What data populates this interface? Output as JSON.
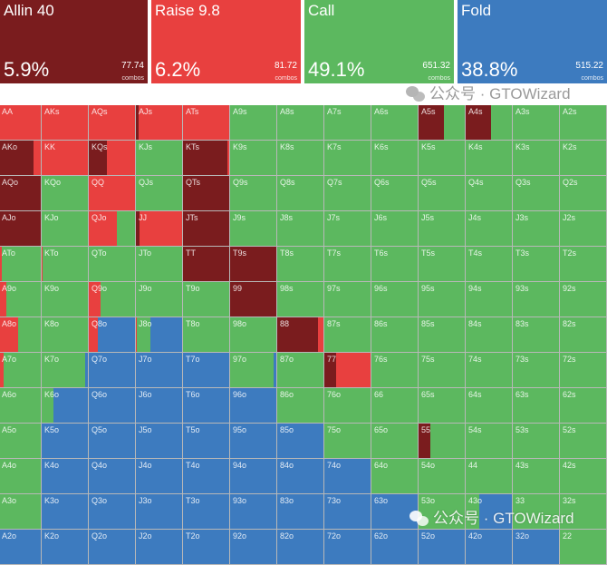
{
  "colors": {
    "allin": "#7a1c1e",
    "raise": "#e8403f",
    "call": "#5cb85f",
    "fold": "#3d7bbf"
  },
  "summary": [
    {
      "name": "Allin 40",
      "pct": "5.9%",
      "combos": "77.74",
      "combos_label": "combos",
      "color": "#7a1c1e"
    },
    {
      "name": "Raise 9.8",
      "pct": "6.2%",
      "combos": "81.72",
      "combos_label": "combos",
      "color": "#e8403f"
    },
    {
      "name": "Call",
      "pct": "49.1%",
      "combos": "651.32",
      "combos_label": "combos",
      "color": "#5cb85f"
    },
    {
      "name": "Fold",
      "pct": "38.8%",
      "combos": "515.22",
      "combos_label": "combos",
      "color": "#3d7bbf"
    }
  ],
  "watermark": "公众号 · GTOWizard",
  "grid": [
    [
      [
        "AA",
        0,
        1,
        0,
        0
      ],
      [
        "AKs",
        0,
        1,
        0,
        0
      ],
      [
        "AQs",
        0,
        1,
        0,
        0
      ],
      [
        "AJs",
        0.05,
        0.95,
        0,
        0
      ],
      [
        "ATs",
        0,
        1,
        0,
        0
      ],
      [
        "A9s",
        0,
        0,
        1,
        0
      ],
      [
        "A8s",
        0,
        0,
        1,
        0
      ],
      [
        "A7s",
        0,
        0,
        1,
        0
      ],
      [
        "A6s",
        0,
        0,
        1,
        0
      ],
      [
        "A5s",
        0.55,
        0,
        0.45,
        0
      ],
      [
        "A4s",
        0.55,
        0,
        0.45,
        0
      ],
      [
        "A3s",
        0,
        0,
        1,
        0
      ],
      [
        "A2s",
        0,
        0,
        1,
        0
      ]
    ],
    [
      [
        "AKo",
        0.85,
        0.15,
        0,
        0
      ],
      [
        "KK",
        0,
        1,
        0,
        0
      ],
      [
        "KQs",
        0.4,
        0.6,
        0,
        0
      ],
      [
        "KJs",
        0,
        0,
        1,
        0
      ],
      [
        "KTs",
        0.97,
        0.03,
        0,
        0
      ],
      [
        "K9s",
        0,
        0,
        1,
        0
      ],
      [
        "K8s",
        0,
        0,
        1,
        0
      ],
      [
        "K7s",
        0,
        0,
        1,
        0
      ],
      [
        "K6s",
        0,
        0,
        1,
        0
      ],
      [
        "K5s",
        0,
        0,
        1,
        0
      ],
      [
        "K4s",
        0,
        0,
        1,
        0
      ],
      [
        "K3s",
        0,
        0,
        1,
        0
      ],
      [
        "K2s",
        0,
        0,
        1,
        0
      ]
    ],
    [
      [
        "AQo",
        1,
        0,
        0,
        0
      ],
      [
        "KQo",
        0,
        0,
        1,
        0
      ],
      [
        "QQ",
        0,
        1,
        0,
        0
      ],
      [
        "QJs",
        0,
        0,
        1,
        0
      ],
      [
        "QTs",
        1,
        0,
        0,
        0
      ],
      [
        "Q9s",
        0,
        0,
        1,
        0
      ],
      [
        "Q8s",
        0,
        0,
        1,
        0
      ],
      [
        "Q7s",
        0,
        0,
        1,
        0
      ],
      [
        "Q6s",
        0,
        0,
        1,
        0
      ],
      [
        "Q5s",
        0,
        0,
        1,
        0
      ],
      [
        "Q4s",
        0,
        0,
        1,
        0
      ],
      [
        "Q3s",
        0,
        0,
        1,
        0
      ],
      [
        "Q2s",
        0,
        0,
        1,
        0
      ]
    ],
    [
      [
        "AJo",
        1,
        0,
        0,
        0
      ],
      [
        "KJo",
        0,
        0,
        1,
        0
      ],
      [
        "QJo",
        0,
        0.6,
        0.4,
        0
      ],
      [
        "JJ",
        0.08,
        0.92,
        0,
        0
      ],
      [
        "JTs",
        1,
        0,
        0,
        0
      ],
      [
        "J9s",
        0,
        0,
        1,
        0
      ],
      [
        "J8s",
        0,
        0,
        1,
        0
      ],
      [
        "J7s",
        0,
        0,
        1,
        0
      ],
      [
        "J6s",
        0,
        0,
        1,
        0
      ],
      [
        "J5s",
        0,
        0,
        1,
        0
      ],
      [
        "J4s",
        0,
        0,
        1,
        0
      ],
      [
        "J3s",
        0,
        0,
        1,
        0
      ],
      [
        "J2s",
        0,
        0,
        1,
        0
      ]
    ],
    [
      [
        "ATo",
        0,
        0.15,
        0.85,
        0
      ],
      [
        "KTo",
        0,
        0.02,
        0.98,
        0
      ],
      [
        "QTo",
        0,
        0,
        1,
        0
      ],
      [
        "JTo",
        0,
        0,
        1,
        0
      ],
      [
        "TT",
        1,
        0,
        0,
        0
      ],
      [
        "T9s",
        1,
        0,
        0,
        0
      ],
      [
        "T8s",
        0,
        0,
        1,
        0
      ],
      [
        "T7s",
        0,
        0,
        1,
        0
      ],
      [
        "T6s",
        0,
        0,
        1,
        0
      ],
      [
        "T5s",
        0,
        0,
        1,
        0
      ],
      [
        "T4s",
        0,
        0,
        1,
        0
      ],
      [
        "T3s",
        0,
        0,
        1,
        0
      ],
      [
        "T2s",
        0,
        0,
        1,
        0
      ]
    ],
    [
      [
        "A9o",
        0,
        0.25,
        0.75,
        0
      ],
      [
        "K9o",
        0,
        0,
        1,
        0
      ],
      [
        "Q9o",
        0,
        0.25,
        0.75,
        0
      ],
      [
        "J9o",
        0,
        0,
        1,
        0
      ],
      [
        "T9o",
        0,
        0,
        1,
        0
      ],
      [
        "99",
        1,
        0,
        0,
        0
      ],
      [
        "98s",
        0,
        0,
        1,
        0
      ],
      [
        "97s",
        0,
        0,
        1,
        0
      ],
      [
        "96s",
        0,
        0,
        1,
        0
      ],
      [
        "95s",
        0,
        0,
        1,
        0
      ],
      [
        "94s",
        0,
        0,
        1,
        0
      ],
      [
        "93s",
        0,
        0,
        1,
        0
      ],
      [
        "92s",
        0,
        0,
        1,
        0
      ]
    ],
    [
      [
        "A8o",
        0,
        0.5,
        0.5,
        0
      ],
      [
        "K8o",
        0,
        0,
        1,
        0
      ],
      [
        "Q8o",
        0,
        0.2,
        0,
        0.8
      ],
      [
        "J8o",
        0,
        0.02,
        0.3,
        0.68
      ],
      [
        "T8o",
        0,
        0,
        1,
        0
      ],
      [
        "98o",
        0,
        0,
        1,
        0
      ],
      [
        "88",
        0.88,
        0.12,
        0,
        0
      ],
      [
        "87s",
        0,
        0,
        1,
        0
      ],
      [
        "86s",
        0,
        0,
        1,
        0
      ],
      [
        "85s",
        0,
        0,
        1,
        0
      ],
      [
        "84s",
        0,
        0,
        1,
        0
      ],
      [
        "83s",
        0,
        0,
        1,
        0
      ],
      [
        "82s",
        0,
        0,
        1,
        0
      ]
    ],
    [
      [
        "A7o",
        0,
        0.2,
        0.8,
        0
      ],
      [
        "K7o",
        0,
        0,
        0.95,
        0.05
      ],
      [
        "Q7o",
        0,
        0,
        0,
        1
      ],
      [
        "J7o",
        0,
        0,
        0,
        1
      ],
      [
        "T7o",
        0,
        0,
        0,
        1
      ],
      [
        "97o",
        0,
        0,
        0.95,
        0.05
      ],
      [
        "87o",
        0,
        0,
        1,
        0
      ],
      [
        "77",
        0.25,
        0.75,
        0,
        0
      ],
      [
        "76s",
        0,
        0,
        1,
        0
      ],
      [
        "75s",
        0,
        0,
        1,
        0
      ],
      [
        "74s",
        0,
        0,
        1,
        0
      ],
      [
        "73s",
        0,
        0,
        1,
        0
      ],
      [
        "72s",
        0,
        0,
        1,
        0
      ]
    ],
    [
      [
        "A6o",
        0,
        0,
        1,
        0
      ],
      [
        "K6o",
        0,
        0,
        0.25,
        0.75
      ],
      [
        "Q6o",
        0,
        0,
        0,
        1
      ],
      [
        "J6o",
        0,
        0,
        0,
        1
      ],
      [
        "T6o",
        0,
        0,
        0,
        1
      ],
      [
        "96o",
        0,
        0,
        0,
        1
      ],
      [
        "86o",
        0,
        0,
        1,
        0
      ],
      [
        "76o",
        0,
        0,
        1,
        0
      ],
      [
        "66",
        0,
        0,
        1,
        0
      ],
      [
        "65s",
        0,
        0,
        1,
        0
      ],
      [
        "64s",
        0,
        0,
        1,
        0
      ],
      [
        "63s",
        0,
        0,
        1,
        0
      ],
      [
        "62s",
        0,
        0,
        1,
        0
      ]
    ],
    [
      [
        "A5o",
        0,
        0.05,
        0.95,
        0
      ],
      [
        "K5o",
        0,
        0,
        0,
        1
      ],
      [
        "Q5o",
        0,
        0,
        0,
        1
      ],
      [
        "J5o",
        0,
        0,
        0,
        1
      ],
      [
        "T5o",
        0,
        0,
        0,
        1
      ],
      [
        "95o",
        0,
        0,
        0,
        1
      ],
      [
        "85o",
        0,
        0,
        0,
        1
      ],
      [
        "75o",
        0,
        0,
        1,
        0
      ],
      [
        "65o",
        0,
        0,
        1,
        0
      ],
      [
        "55",
        0.25,
        0,
        0.75,
        0
      ],
      [
        "54s",
        0,
        0,
        1,
        0
      ],
      [
        "53s",
        0,
        0,
        1,
        0
      ],
      [
        "52s",
        0,
        0,
        1,
        0
      ]
    ],
    [
      [
        "A4o",
        0,
        0,
        1,
        0
      ],
      [
        "K4o",
        0,
        0,
        0,
        1
      ],
      [
        "Q4o",
        0,
        0,
        0,
        1
      ],
      [
        "J4o",
        0,
        0,
        0,
        1
      ],
      [
        "T4o",
        0,
        0,
        0,
        1
      ],
      [
        "94o",
        0,
        0,
        0,
        1
      ],
      [
        "84o",
        0,
        0,
        0,
        1
      ],
      [
        "74o",
        0,
        0,
        0,
        1
      ],
      [
        "64o",
        0,
        0,
        1,
        0
      ],
      [
        "54o",
        0,
        0,
        1,
        0
      ],
      [
        "44",
        0,
        0,
        1,
        0
      ],
      [
        "43s",
        0,
        0,
        1,
        0
      ],
      [
        "42s",
        0,
        0,
        1,
        0
      ]
    ],
    [
      [
        "A3o",
        0,
        0,
        1,
        0
      ],
      [
        "K3o",
        0,
        0,
        0,
        1
      ],
      [
        "Q3o",
        0,
        0,
        0,
        1
      ],
      [
        "J3o",
        0,
        0,
        0,
        1
      ],
      [
        "T3o",
        0,
        0,
        0,
        1
      ],
      [
        "93o",
        0,
        0,
        0,
        1
      ],
      [
        "83o",
        0,
        0,
        0,
        1
      ],
      [
        "73o",
        0,
        0,
        0,
        1
      ],
      [
        "63o",
        0,
        0,
        0,
        1
      ],
      [
        "53o",
        0,
        0,
        1,
        0
      ],
      [
        "43o",
        0,
        0,
        0.3,
        0.7
      ],
      [
        "33",
        0,
        0,
        1,
        0
      ],
      [
        "32s",
        0,
        0,
        1,
        0
      ]
    ],
    [
      [
        "A2o",
        0,
        0.05,
        0,
        0.95
      ],
      [
        "K2o",
        0,
        0,
        0,
        1
      ],
      [
        "Q2o",
        0,
        0,
        0,
        1
      ],
      [
        "J2o",
        0,
        0,
        0,
        1
      ],
      [
        "T2o",
        0,
        0,
        0,
        1
      ],
      [
        "92o",
        0,
        0,
        0,
        1
      ],
      [
        "82o",
        0,
        0,
        0,
        1
      ],
      [
        "72o",
        0,
        0,
        0,
        1
      ],
      [
        "62o",
        0,
        0,
        0,
        1
      ],
      [
        "52o",
        0,
        0,
        0,
        1
      ],
      [
        "42o",
        0,
        0,
        0,
        1
      ],
      [
        "32o",
        0,
        0,
        0,
        1
      ],
      [
        "22",
        0,
        0,
        1,
        0
      ]
    ]
  ]
}
